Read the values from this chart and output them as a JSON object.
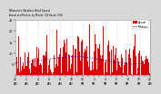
{
  "background_color": "#d8d8d8",
  "plot_background": "#ffffff",
  "n_points": 1440,
  "ylim": [
    0,
    25
  ],
  "yticks": [
    5,
    10,
    15,
    20,
    25
  ],
  "bar_color": "#dd0000",
  "line_color": "#0000dd",
  "legend_actual_color": "#dd0000",
  "legend_median_color": "#0000dd",
  "vline_color": "#bbbbbb",
  "seed": 1234
}
